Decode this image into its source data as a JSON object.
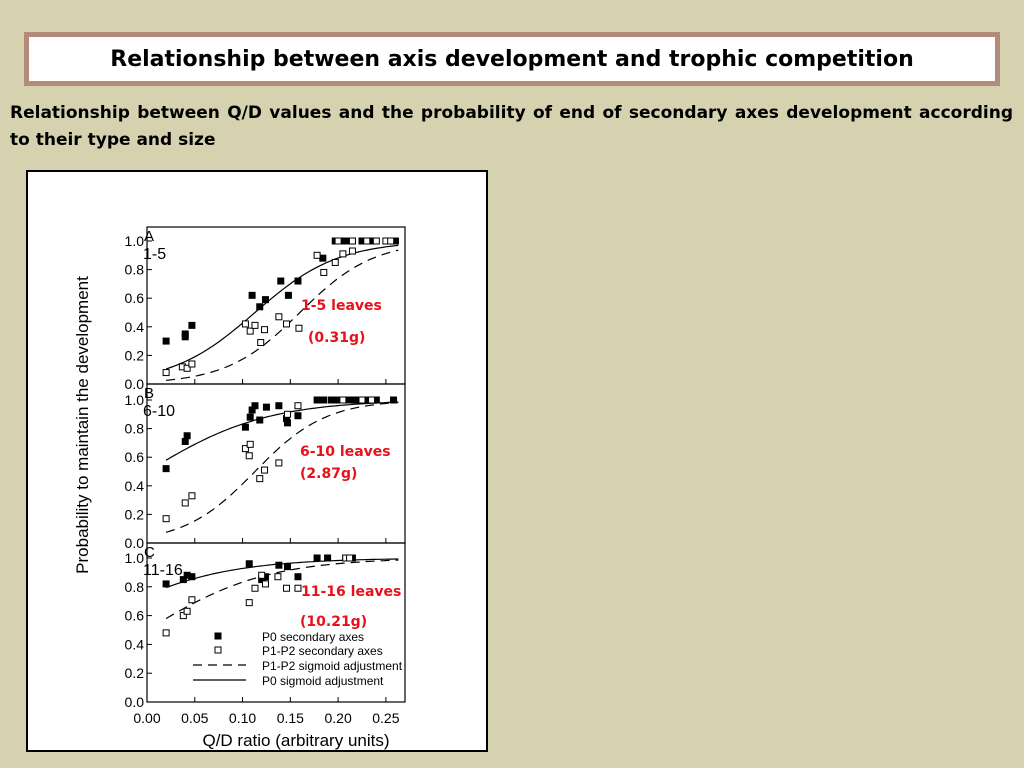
{
  "page": {
    "title": "Relationship between axis development and trophic competition",
    "subtitle": "Relationship between Q/D values and the probability of end of secondary axes development according to their type and size"
  },
  "chart_data": {
    "type": "scatter",
    "ylabel": "Probability to maintain the development",
    "xlabel": "Q/D ratio (arbitrary units)",
    "xlim": [
      0,
      0.27
    ],
    "ylim": [
      0,
      1.0
    ],
    "x_ticks": [
      "0.00",
      "0.05",
      "0.10",
      "0.15",
      "0.20",
      "0.25"
    ],
    "y_ticks": [
      "0.0",
      "0.2",
      "0.4",
      "0.6",
      "0.8",
      "1.0"
    ],
    "legend": {
      "placement": "bottom-right of panel C",
      "items": [
        {
          "marker": "filled-square",
          "label": "P0 secondary axes"
        },
        {
          "marker": "open-square",
          "label": "P1-P2 secondary axes"
        },
        {
          "marker": "dashed-line",
          "label": "P1-P2 sigmoid adjustment"
        },
        {
          "marker": "solid-line",
          "label": "P0 sigmoid adjustment"
        }
      ]
    },
    "colors": {
      "annotation": "#e8101a",
      "marks": "#000000"
    },
    "panels": [
      {
        "letter": "A",
        "size_label": "1-5",
        "annotation": [
          "1-5 leaves",
          "(0.31g)"
        ],
        "series": [
          {
            "name": "P0 secondary axes",
            "marker": "filled-square",
            "points": [
              [
                0.02,
                0.3
              ],
              [
                0.04,
                0.33
              ],
              [
                0.04,
                0.35
              ],
              [
                0.047,
                0.41
              ],
              [
                0.11,
                0.62
              ],
              [
                0.118,
                0.54
              ],
              [
                0.124,
                0.59
              ],
              [
                0.14,
                0.72
              ],
              [
                0.148,
                0.62
              ],
              [
                0.158,
                0.72
              ],
              [
                0.184,
                0.88
              ],
              [
                0.197,
                1.0
              ],
              [
                0.205,
                1.0
              ],
              [
                0.21,
                1.0
              ],
              [
                0.215,
                1.0
              ],
              [
                0.225,
                1.0
              ],
              [
                0.235,
                1.0
              ],
              [
                0.26,
                1.0
              ]
            ]
          },
          {
            "name": "P1-P2 secondary axes",
            "marker": "open-square",
            "points": [
              [
                0.02,
                0.08
              ],
              [
                0.037,
                0.12
              ],
              [
                0.042,
                0.11
              ],
              [
                0.047,
                0.14
              ],
              [
                0.103,
                0.42
              ],
              [
                0.108,
                0.37
              ],
              [
                0.113,
                0.41
              ],
              [
                0.119,
                0.29
              ],
              [
                0.123,
                0.38
              ],
              [
                0.138,
                0.47
              ],
              [
                0.146,
                0.42
              ],
              [
                0.159,
                0.39
              ],
              [
                0.178,
                0.9
              ],
              [
                0.185,
                0.78
              ],
              [
                0.197,
                0.85
              ],
              [
                0.205,
                0.91
              ],
              [
                0.215,
                0.93
              ],
              [
                0.2,
                1.0
              ],
              [
                0.215,
                1.0
              ],
              [
                0.23,
                1.0
              ],
              [
                0.24,
                1.0
              ],
              [
                0.25,
                1.0
              ],
              [
                0.255,
                1.0
              ]
            ]
          }
        ],
        "curves": {
          "P0": {
            "x0": 0.113,
            "k": 23
          },
          "P1P2": {
            "x0": 0.16,
            "k": 26
          }
        }
      },
      {
        "letter": "B",
        "size_label": "6-10",
        "annotation": [
          "6-10 leaves",
          "(2.87g)"
        ],
        "series": [
          {
            "name": "P0 secondary axes",
            "marker": "filled-square",
            "points": [
              [
                0.02,
                0.52
              ],
              [
                0.04,
                0.71
              ],
              [
                0.042,
                0.75
              ],
              [
                0.103,
                0.81
              ],
              [
                0.108,
                0.88
              ],
              [
                0.11,
                0.93
              ],
              [
                0.113,
                0.96
              ],
              [
                0.118,
                0.86
              ],
              [
                0.125,
                0.95
              ],
              [
                0.138,
                0.96
              ],
              [
                0.146,
                0.87
              ],
              [
                0.147,
                0.84
              ],
              [
                0.158,
                0.89
              ],
              [
                0.178,
                1.0
              ],
              [
                0.185,
                1.0
              ],
              [
                0.193,
                1.0
              ],
              [
                0.2,
                1.0
              ],
              [
                0.21,
                1.0
              ],
              [
                0.215,
                1.0
              ],
              [
                0.222,
                1.0
              ],
              [
                0.228,
                1.0
              ],
              [
                0.235,
                1.0
              ],
              [
                0.24,
                1.0
              ],
              [
                0.258,
                1.0
              ]
            ]
          },
          {
            "name": "P1-P2 secondary axes",
            "marker": "open-square",
            "points": [
              [
                0.02,
                0.17
              ],
              [
                0.04,
                0.28
              ],
              [
                0.047,
                0.33
              ],
              [
                0.103,
                0.66
              ],
              [
                0.108,
                0.69
              ],
              [
                0.107,
                0.61
              ],
              [
                0.118,
                0.45
              ],
              [
                0.123,
                0.51
              ],
              [
                0.138,
                0.56
              ],
              [
                0.147,
                0.9
              ],
              [
                0.158,
                0.96
              ],
              [
                0.205,
                1.0
              ],
              [
                0.225,
                1.0
              ],
              [
                0.235,
                1.0
              ]
            ]
          }
        ],
        "curves": {
          "P0": {
            "x0": 0.0,
            "k": 16
          },
          "P1P2": {
            "x0": 0.113,
            "k": 27
          }
        }
      },
      {
        "letter": "C",
        "size_label": "11-16",
        "annotation": [
          "11-16 leaves",
          "(10.21g)"
        ],
        "series": [
          {
            "name": "P0 secondary axes",
            "marker": "filled-square",
            "points": [
              [
                0.02,
                0.82
              ],
              [
                0.038,
                0.85
              ],
              [
                0.042,
                0.88
              ],
              [
                0.047,
                0.87
              ],
              [
                0.107,
                0.96
              ],
              [
                0.12,
                0.85
              ],
              [
                0.124,
                0.87
              ],
              [
                0.138,
                0.95
              ],
              [
                0.147,
                0.94
              ],
              [
                0.158,
                0.87
              ],
              [
                0.178,
                1.0
              ],
              [
                0.189,
                1.0
              ],
              [
                0.208,
                1.0
              ],
              [
                0.215,
                1.0
              ]
            ]
          },
          {
            "name": "P1-P2 secondary axes",
            "marker": "open-square",
            "points": [
              [
                0.02,
                0.48
              ],
              [
                0.038,
                0.6
              ],
              [
                0.042,
                0.63
              ],
              [
                0.047,
                0.71
              ],
              [
                0.107,
                0.69
              ],
              [
                0.113,
                0.79
              ],
              [
                0.12,
                0.88
              ],
              [
                0.124,
                0.82
              ],
              [
                0.137,
                0.87
              ],
              [
                0.146,
                0.79
              ],
              [
                0.158,
                0.79
              ],
              [
                0.208,
                1.0
              ],
              [
                0.212,
                1.0
              ]
            ]
          }
        ],
        "curves": {
          "P0": {
            "x0": -0.07,
            "k": 15
          },
          "P1P2": {
            "x0": 0.0,
            "k": 16
          }
        }
      }
    ]
  }
}
